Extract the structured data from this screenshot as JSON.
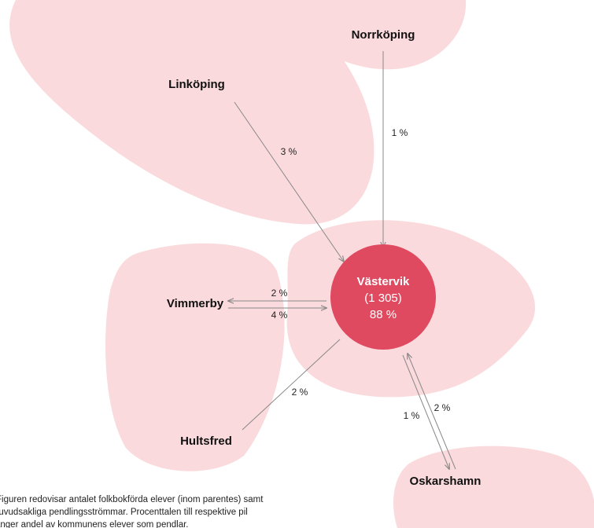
{
  "center": {
    "label": "Västervik",
    "count": "(1 305)",
    "share": "88 %"
  },
  "nodes": [
    {
      "label": "Norrköping"
    },
    {
      "label": "Linköping"
    },
    {
      "label": "Vimmerby"
    },
    {
      "label": "Hultsfred"
    },
    {
      "label": "Oskarshamn"
    }
  ],
  "edges": [
    {
      "label": "1 %"
    },
    {
      "label": "3 %"
    },
    {
      "label": "2 %"
    },
    {
      "label": "4 %"
    },
    {
      "label": "2 %"
    },
    {
      "label": "1 %"
    },
    {
      "label": "2 %"
    }
  ],
  "footnote": [
    "Figuren redovisar antalet folkbokförda elever (inom parentes) samt",
    "huvudsakliga pendlingsströmmar. Procenttalen till respektive pil",
    "anger andel av kommunens elever som pendlar."
  ]
}
